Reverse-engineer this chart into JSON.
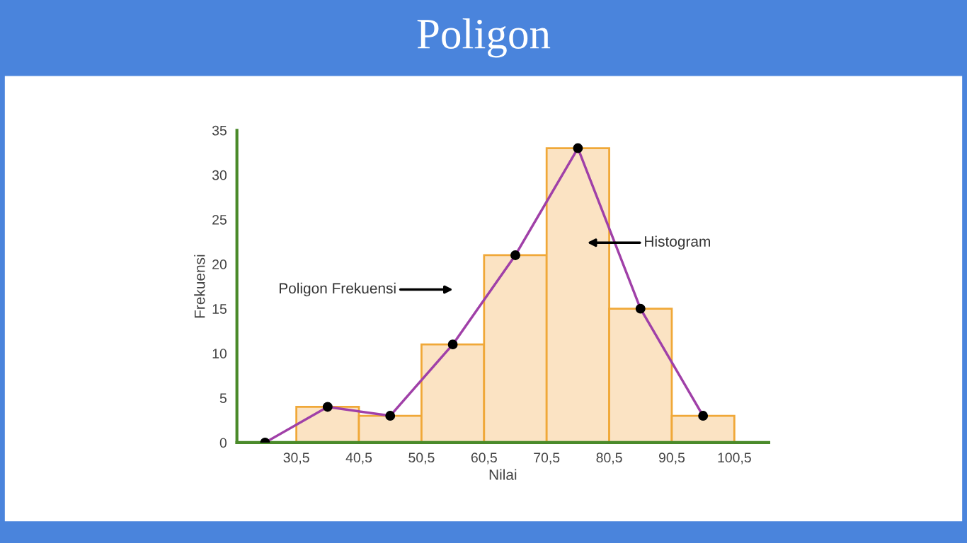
{
  "chart_data": {
    "type": "histogram",
    "title": "Poligon",
    "xlabel": "Nilai",
    "ylabel": "Frekuensi",
    "bins": [
      30.5,
      40.5,
      50.5,
      60.5,
      70.5,
      80.5,
      90.5,
      100.5
    ],
    "values": [
      4,
      3,
      11,
      21,
      33,
      15,
      3
    ],
    "color": "#fbe3c3",
    "series": [
      {
        "type": "line",
        "x": [
          25.5,
          35.5,
          45.5,
          55.5,
          65.5,
          75.5,
          85.5,
          95.5
        ],
        "values": [
          0,
          4,
          3,
          11,
          21,
          33,
          15,
          3
        ],
        "color": "#a040a8"
      }
    ],
    "marker": "circle",
    "grid": false,
    "xlim": [
      21,
      106
    ],
    "xticks": [
      {
        "value": 30.5,
        "label": "30,5"
      },
      {
        "value": 40.5,
        "label": "40,5"
      },
      {
        "value": 50.5,
        "label": "50,5"
      },
      {
        "value": 60.5,
        "label": "60,5"
      },
      {
        "value": 70.5,
        "label": "70,5"
      },
      {
        "value": 80.5,
        "label": "80,5"
      },
      {
        "value": 90.5,
        "label": "90,5"
      },
      {
        "value": 100.5,
        "label": "100,5"
      }
    ],
    "ylim": [
      0,
      35
    ],
    "yticks": [
      0,
      5,
      10,
      15,
      20,
      25,
      30,
      35
    ],
    "annotations": [
      "Histogram",
      "Poligon Frekuensi"
    ]
  }
}
